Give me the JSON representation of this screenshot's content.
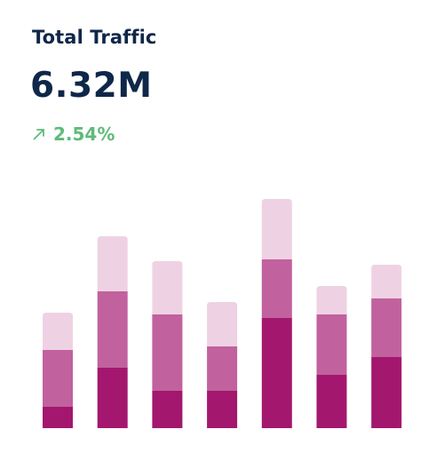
{
  "widget": {
    "title": "Total Traffic",
    "total_value": "6.32M",
    "change": {
      "direction": "up",
      "icon": "arrow-up-right-icon",
      "value": "2.54%",
      "color": "#5fbb7a"
    }
  },
  "colors": {
    "text": "#0f2748",
    "segment_dark": "#a3176e",
    "segment_medium": "#c1619e",
    "segment_light": "#eed2e3"
  },
  "chart_data": {
    "type": "bar",
    "stacked": true,
    "categories": [
      "",
      "",
      "",
      "",
      "",
      "",
      ""
    ],
    "series": [
      {
        "color": "#a3176e",
        "values": [
          24,
          68,
          42,
          42,
          124,
          60,
          80
        ]
      },
      {
        "color": "#c1619e",
        "values": [
          64,
          86,
          86,
          50,
          66,
          68,
          66
        ]
      },
      {
        "color": "#eed2e3",
        "values": [
          42,
          62,
          60,
          50,
          68,
          32,
          38
        ]
      }
    ],
    "axis_visible": false,
    "grid": false
  }
}
